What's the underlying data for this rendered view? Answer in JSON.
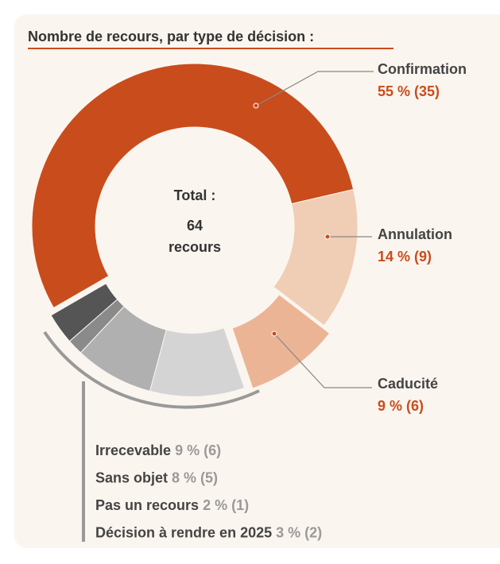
{
  "chart_data": {
    "type": "donut",
    "title": "Nombre de recours, par type de décision :",
    "categories": [
      "Confirmation",
      "Annulation",
      "Caducité",
      "Irrecevable",
      "Sans objet",
      "Pas un recours",
      "Décision à rendre en 2025"
    ],
    "values": [
      35,
      9,
      6,
      6,
      5,
      1,
      2
    ],
    "value_labels": [
      "55 % (35)",
      "14 % (9)",
      "9 % (6)",
      "9 % (6)",
      "8 % (5)",
      "2 % (1)",
      "3 % (2)"
    ],
    "colors": [
      "#c94c1c",
      "#f0cdb5",
      "#ebb595",
      "#d4d4d4",
      "#b0b0b0",
      "#8a8a8a",
      "#555555"
    ],
    "total_label": "Total :",
    "total": 64,
    "total_unit": "recours"
  }
}
